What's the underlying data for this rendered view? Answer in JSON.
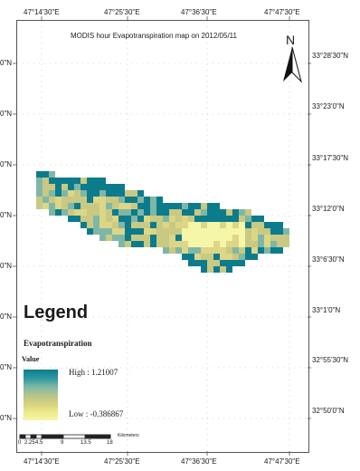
{
  "map": {
    "title": "MODIS hour  Evapotranspiration map on 2012/05/11",
    "north_label": "N",
    "north_icon": "north-arrow-icon"
  },
  "graticule": {
    "top_labels": [
      "47°14'30\"E",
      "47°25'30\"E",
      "47°36'30\"E",
      "47°47'30\"E"
    ],
    "bottom_labels": [
      "47°14'30\"E",
      "47°25'30\"E",
      "47°36'30\"E",
      "47°47'30\"E"
    ],
    "right_labels": [
      "33°28'30\"N",
      "33°23'0\"N",
      "33°17'30\"N",
      "33°12'0\"N",
      "33°6'30\"N",
      "33°1'0\"N",
      "32°55'30\"N",
      "32°50'0\"N"
    ],
    "left_labels": [
      "0\"N",
      "0\"N",
      "0\"N",
      "0\"N",
      "0\"N",
      "0\"N",
      "0\"N",
      "0\"N"
    ]
  },
  "legend": {
    "title": "Legend",
    "layer": "Evapotranspiration",
    "field": "Value",
    "high": "High : 1.21007",
    "low": "Low : -0.386867",
    "colors": {
      "high": "#0c7b8c",
      "mid_high": "#7fb7a6",
      "mid": "#c9c983",
      "mid_low": "#dcd686",
      "low": "#f6f6a8"
    }
  },
  "scale_bar": {
    "ticks": [
      "0",
      "2.25",
      "4.5",
      "9",
      "13.5",
      "18"
    ],
    "unit": "Kilometers"
  }
}
